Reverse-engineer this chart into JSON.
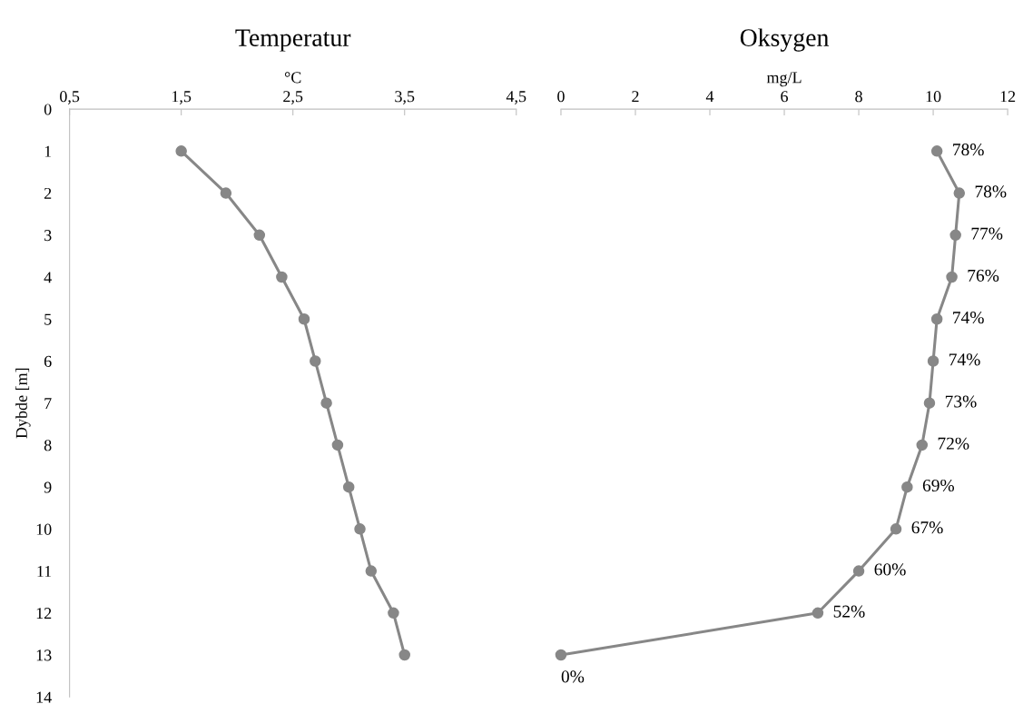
{
  "chart_data": [
    {
      "type": "line",
      "orientation": "horizontal",
      "title": "Temperatur",
      "xlabel": "°C",
      "ylabel": "Dybde [m]",
      "marker": "circle",
      "grid": false,
      "legend": false,
      "x": [
        1,
        2,
        3,
        4,
        5,
        6,
        7,
        8,
        9,
        10,
        11,
        12,
        13
      ],
      "series": [
        {
          "color": "#878787",
          "values": [
            1.5,
            1.9,
            2.2,
            2.4,
            2.6,
            2.7,
            2.8,
            2.9,
            3.0,
            3.1,
            3.2,
            3.4,
            3.5
          ]
        }
      ],
      "xlim": [
        0.5,
        4.5
      ],
      "xticks": [
        {
          "value": 0.5,
          "label": "0,5"
        },
        {
          "value": 1.5,
          "label": "1,5"
        },
        {
          "value": 2.5,
          "label": "2,5"
        },
        {
          "value": 3.5,
          "label": "3,5"
        },
        {
          "value": 4.5,
          "label": "4,5"
        }
      ],
      "ylim": [
        14,
        0
      ],
      "yticks": [
        0,
        1,
        2,
        3,
        4,
        5,
        6,
        7,
        8,
        9,
        10,
        11,
        12,
        13,
        14
      ]
    },
    {
      "type": "line",
      "orientation": "horizontal",
      "title": "Oksygen",
      "xlabel": "mg/L",
      "marker": "circle",
      "grid": false,
      "legend": false,
      "tick_labels": "x",
      "x": [
        1,
        2,
        3,
        4,
        5,
        6,
        7,
        8,
        9,
        10,
        11,
        12,
        13
      ],
      "series": [
        {
          "color": "#878787",
          "values": [
            10.1,
            10.7,
            10.6,
            10.5,
            10.1,
            10.0,
            9.9,
            9.7,
            9.3,
            9.0,
            8.0,
            6.9,
            0
          ]
        }
      ],
      "annotations": [
        {
          "text": "78%",
          "x": 10.1,
          "y": 1
        },
        {
          "text": "78%",
          "x": 10.7,
          "y": 2
        },
        {
          "text": "77%",
          "x": 10.6,
          "y": 3
        },
        {
          "text": "76%",
          "x": 10.5,
          "y": 4
        },
        {
          "text": "74%",
          "x": 10.1,
          "y": 5
        },
        {
          "text": "74%",
          "x": 10.0,
          "y": 6
        },
        {
          "text": "73%",
          "x": 9.9,
          "y": 7
        },
        {
          "text": "72%",
          "x": 9.7,
          "y": 8
        },
        {
          "text": "69%",
          "x": 9.3,
          "y": 9
        },
        {
          "text": "67%",
          "x": 9.0,
          "y": 10
        },
        {
          "text": "60%",
          "x": 8.0,
          "y": 11
        },
        {
          "text": "52%",
          "x": 6.9,
          "y": 12
        },
        {
          "text": "0%",
          "x": 0,
          "y": 13
        }
      ],
      "xlim": [
        0,
        12
      ],
      "xticks": [
        0,
        2,
        4,
        6,
        8,
        10,
        12
      ],
      "ylim": [
        14,
        0
      ],
      "yticks": [
        0,
        1,
        2,
        3,
        4,
        5,
        6,
        7,
        8,
        9,
        10,
        11,
        12,
        13,
        14
      ]
    }
  ]
}
